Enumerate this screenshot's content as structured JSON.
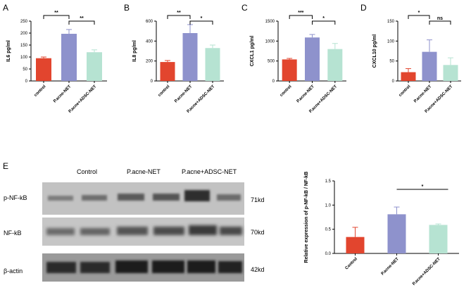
{
  "colors": {
    "control": "#e2452e",
    "pacne_net": "#8e92cc",
    "pacne_adsc_net": "#b6e3d2",
    "axis": "#000000"
  },
  "chart_data": [
    {
      "panel": "A",
      "type": "bar",
      "ylabel": "IL6 pg/ml",
      "categories": [
        "control",
        "P.acne-NET",
        "P.acne+ADSC-NET"
      ],
      "values": [
        95,
        197,
        120
      ],
      "errors": [
        5,
        18,
        10
      ],
      "ylim": [
        0,
        250
      ],
      "yticks": [
        "0",
        "50",
        "100",
        "150",
        "200",
        "250"
      ],
      "significance": [
        {
          "from": 0,
          "to": 1,
          "label": "**"
        },
        {
          "from": 1,
          "to": 2,
          "label": "**"
        }
      ]
    },
    {
      "panel": "B",
      "type": "bar",
      "ylabel": "IL8 pg/ml",
      "categories": [
        "control",
        "P.acne-NET",
        "P.acne+ADSC-NET"
      ],
      "values": [
        190,
        480,
        330
      ],
      "errors": [
        15,
        85,
        30
      ],
      "ylim": [
        0,
        600
      ],
      "yticks": [
        "0",
        "200",
        "400",
        "600"
      ],
      "significance": [
        {
          "from": 0,
          "to": 1,
          "label": "**"
        },
        {
          "from": 1,
          "to": 2,
          "label": "*"
        }
      ]
    },
    {
      "panel": "C",
      "type": "bar",
      "ylabel": "CXCL1 pg/ml",
      "categories": [
        "control",
        "P.acne-NET",
        "P.acne+ADSC-NET"
      ],
      "values": [
        540,
        1090,
        800
      ],
      "errors": [
        25,
        75,
        140
      ],
      "ylim": [
        0,
        1500
      ],
      "yticks": [
        "0",
        "500",
        "1000",
        "1500"
      ],
      "significance": [
        {
          "from": 0,
          "to": 1,
          "label": "***"
        },
        {
          "from": 1,
          "to": 2,
          "label": "*"
        }
      ]
    },
    {
      "panel": "D",
      "type": "bar",
      "ylabel": "CXCL10 pg/ml",
      "categories": [
        "control",
        "P.acne-NET",
        "P.acne+ADSC-NET"
      ],
      "values": [
        22,
        73,
        40
      ],
      "errors": [
        9,
        30,
        18
      ],
      "ylim": [
        0,
        150
      ],
      "yticks": [
        "0",
        "50",
        "100",
        "150"
      ],
      "significance": [
        {
          "from": 0,
          "to": 1,
          "label": "*"
        },
        {
          "from": 1,
          "to": 2,
          "label": "ns"
        }
      ]
    },
    {
      "panel": "E",
      "type": "bar",
      "ylabel": "Relative expression of p-NF-kB / NF-kB",
      "categories": [
        "Control",
        "P.acne-NET",
        "P.acne+ADSC-NET"
      ],
      "values": [
        0.34,
        0.81,
        0.59
      ],
      "errors": [
        0.2,
        0.15,
        0.02
      ],
      "ylim": [
        0,
        1.5
      ],
      "yticks": [
        "0.0",
        "0.5",
        "1.0",
        "1.5"
      ],
      "significance": [
        {
          "from": 1,
          "to": 2,
          "label": "*"
        }
      ]
    }
  ],
  "blot": {
    "panel": "E",
    "lanes": [
      "Control",
      "P.acne-NET",
      "P.acne+ADSC-NET"
    ],
    "rows": [
      {
        "label": "p-NF-kB",
        "size": "71kd"
      },
      {
        "label": "NF-kB",
        "size": "70kd"
      },
      {
        "label": "β-actin",
        "size": "42kd"
      }
    ]
  }
}
